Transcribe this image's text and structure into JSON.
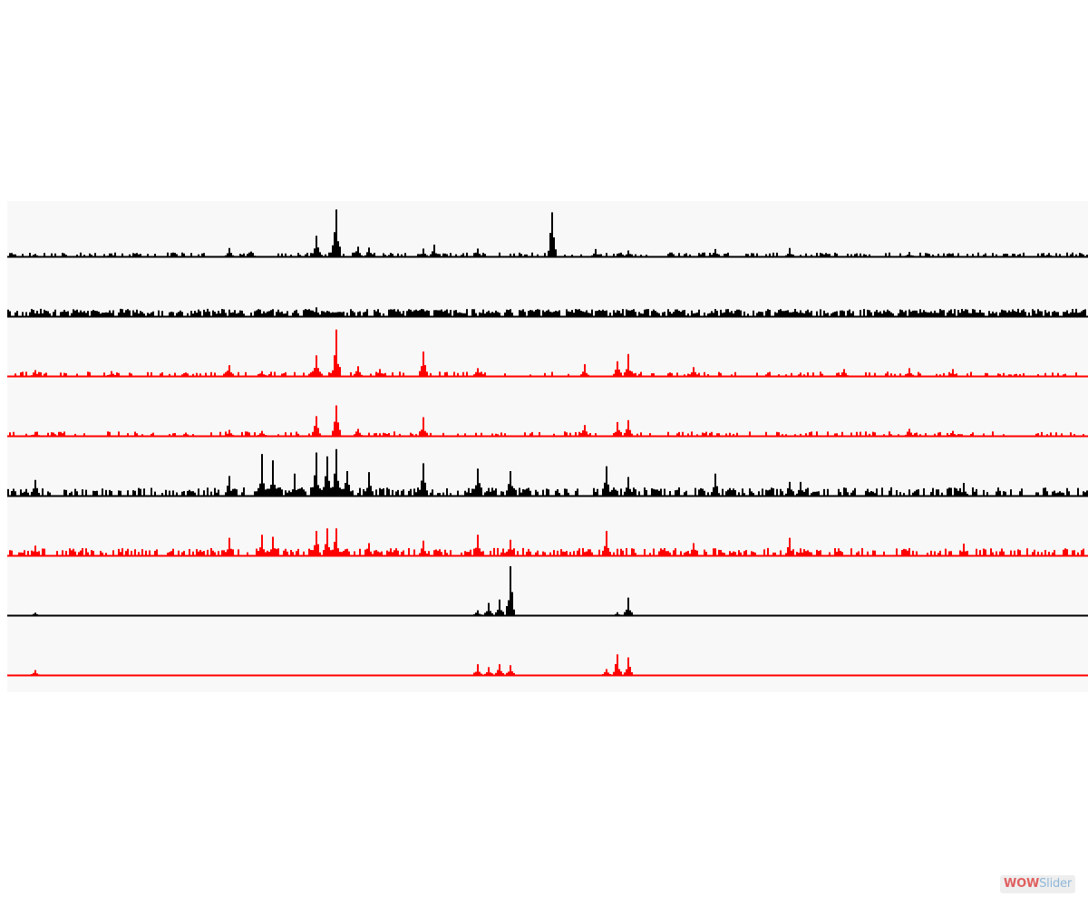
{
  "chart_data": {
    "type": "area",
    "title": "",
    "xlabel": "",
    "ylabel": "",
    "grid": false,
    "legend": "none",
    "x_range": [
      0,
      1000
    ],
    "y_range": [
      0,
      1
    ],
    "tracks": [
      {
        "color": "#000000",
        "baseline_level": 0.03,
        "noise_level": 0.05,
        "noise_density": 0.35,
        "peaks": [
          [
            2.5,
            0.05
          ],
          [
            9.5,
            0.06
          ],
          [
            20.5,
            0.17
          ],
          [
            22.5,
            0.1
          ],
          [
            28.5,
            0.42
          ],
          [
            30.5,
            0.96
          ],
          [
            32.5,
            0.2
          ],
          [
            33.5,
            0.18
          ],
          [
            38.5,
            0.16
          ],
          [
            39.5,
            0.24
          ],
          [
            43.5,
            0.16
          ],
          [
            50.5,
            0.9
          ],
          [
            54.5,
            0.15
          ],
          [
            57.5,
            0.12
          ],
          [
            65.5,
            0.15
          ],
          [
            72.5,
            0.17
          ],
          [
            83.5,
            0.09
          ],
          [
            96.5,
            0.07
          ],
          [
            99.5,
            0.06
          ]
        ]
      },
      {
        "color": "#000000",
        "baseline_level": 0.05,
        "noise_level": 0.1,
        "noise_density": 0.8,
        "peaks": [
          [
            28.5,
            0.18
          ],
          [
            38.5,
            0.14
          ],
          [
            56.5,
            0.12
          ],
          [
            62.5,
            0.12
          ],
          [
            85.5,
            0.1
          ]
        ]
      },
      {
        "color": "#ff0000",
        "baseline_level": 0.03,
        "noise_level": 0.06,
        "noise_density": 0.3,
        "peaks": [
          [
            2.5,
            0.12
          ],
          [
            9.5,
            0.1
          ],
          [
            20.5,
            0.22
          ],
          [
            23.5,
            0.1
          ],
          [
            28.5,
            0.42
          ],
          [
            30.5,
            0.95
          ],
          [
            32.5,
            0.2
          ],
          [
            34.5,
            0.14
          ],
          [
            38.5,
            0.5
          ],
          [
            43.5,
            0.16
          ],
          [
            53.5,
            0.24
          ],
          [
            56.5,
            0.3
          ],
          [
            57.5,
            0.45
          ],
          [
            63.5,
            0.18
          ],
          [
            77.5,
            0.14
          ],
          [
            83.5,
            0.16
          ],
          [
            87.5,
            0.14
          ]
        ]
      },
      {
        "color": "#ff0000",
        "baseline_level": 0.03,
        "noise_level": 0.06,
        "noise_density": 0.3,
        "peaks": [
          [
            2.5,
            0.08
          ],
          [
            20.5,
            0.12
          ],
          [
            23.5,
            0.1
          ],
          [
            28.5,
            0.4
          ],
          [
            30.5,
            0.62
          ],
          [
            32.5,
            0.14
          ],
          [
            38.5,
            0.38
          ],
          [
            53.5,
            0.22
          ],
          [
            56.5,
            0.28
          ],
          [
            57.5,
            0.32
          ],
          [
            83.5,
            0.14
          ],
          [
            87.5,
            0.1
          ]
        ]
      },
      {
        "color": "#000000",
        "baseline_level": 0.05,
        "noise_level": 0.12,
        "noise_density": 0.55,
        "peaks": [
          [
            2.5,
            0.32
          ],
          [
            20.5,
            0.4
          ],
          [
            23.5,
            0.85
          ],
          [
            24.5,
            0.72
          ],
          [
            26.5,
            0.45
          ],
          [
            28.5,
            0.88
          ],
          [
            29.5,
            0.8
          ],
          [
            30.5,
            0.95
          ],
          [
            31.5,
            0.5
          ],
          [
            33.5,
            0.48
          ],
          [
            38.5,
            0.66
          ],
          [
            43.5,
            0.55
          ],
          [
            46.5,
            0.5
          ],
          [
            55.5,
            0.6
          ],
          [
            57.5,
            0.38
          ],
          [
            65.5,
            0.45
          ],
          [
            72.5,
            0.28
          ],
          [
            73.5,
            0.28
          ],
          [
            88.5,
            0.26
          ]
        ]
      },
      {
        "color": "#ff0000",
        "baseline_level": 0.05,
        "noise_level": 0.1,
        "noise_density": 0.5,
        "peaks": [
          [
            2.5,
            0.2
          ],
          [
            20.5,
            0.36
          ],
          [
            23.5,
            0.42
          ],
          [
            24.5,
            0.38
          ],
          [
            28.5,
            0.5
          ],
          [
            29.5,
            0.55
          ],
          [
            30.5,
            0.55
          ],
          [
            33.5,
            0.25
          ],
          [
            38.5,
            0.3
          ],
          [
            43.5,
            0.42
          ],
          [
            46.5,
            0.32
          ],
          [
            55.5,
            0.5
          ],
          [
            63.5,
            0.25
          ],
          [
            72.5,
            0.36
          ],
          [
            88.5,
            0.24
          ]
        ]
      },
      {
        "color": "#000000",
        "baseline_level": 0.0,
        "noise_level": 0.0,
        "noise_density": 0.0,
        "peaks": [
          [
            2.5,
            0.05
          ],
          [
            43.5,
            0.1
          ],
          [
            44.5,
            0.25
          ],
          [
            45.5,
            0.32
          ],
          [
            46.5,
            1.0
          ],
          [
            56.5,
            0.06
          ],
          [
            57.5,
            0.36
          ]
        ]
      },
      {
        "color": "#ff0000",
        "baseline_level": 0.0,
        "noise_level": 0.0,
        "noise_density": 0.0,
        "peaks": [
          [
            2.5,
            0.1
          ],
          [
            43.5,
            0.22
          ],
          [
            44.5,
            0.16
          ],
          [
            45.5,
            0.22
          ],
          [
            46.5,
            0.2
          ],
          [
            55.5,
            0.12
          ],
          [
            56.5,
            0.42
          ],
          [
            57.5,
            0.36
          ]
        ]
      }
    ]
  },
  "watermark": {
    "part1": "WOW",
    "part2": "Slider"
  }
}
